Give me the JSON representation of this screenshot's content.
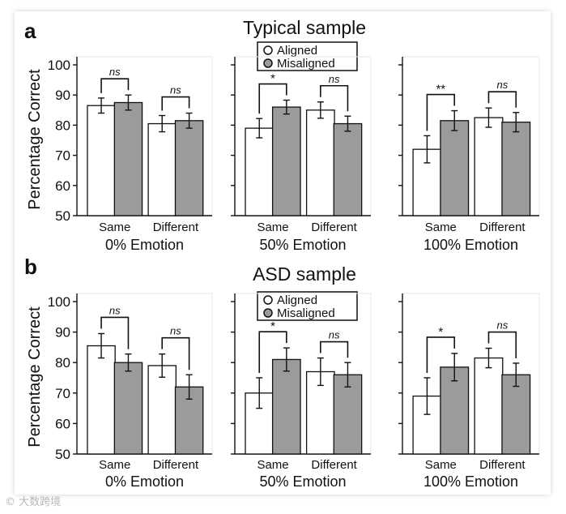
{
  "figure": {
    "y_axis_label": "Percentage Correct",
    "legend": {
      "aligned": "Aligned",
      "misaligned": "Misaligned"
    },
    "colors": {
      "aligned": "#ffffff",
      "misaligned": "#9b9b9b",
      "stroke": "#111111"
    },
    "watermark": "© 大数跨境"
  },
  "chart_data": [
    {
      "panel": "a",
      "title": "Typical sample",
      "type": "bar",
      "ylim": [
        50,
        100
      ],
      "yticks": [
        50,
        60,
        70,
        80,
        90,
        100
      ],
      "subplots": [
        {
          "xlabel": "0% Emotion",
          "categories": [
            "Same",
            "Different"
          ],
          "series": [
            {
              "name": "Aligned",
              "values": [
                86.5,
                80.5
              ]
            },
            {
              "name": "Misaligned",
              "values": [
                87.5,
                81.5
              ]
            }
          ],
          "errors": [
            [
              2.5,
              2.5
            ],
            [
              2.7,
              2.5
            ]
          ],
          "annotations": [
            "ns",
            "ns"
          ]
        },
        {
          "xlabel": "50% Emotion",
          "categories": [
            "Same",
            "Different"
          ],
          "series": [
            {
              "name": "Aligned",
              "values": [
                79,
                85
              ]
            },
            {
              "name": "Misaligned",
              "values": [
                86,
                80.5
              ]
            }
          ],
          "errors": [
            [
              3.2,
              2.3
            ],
            [
              2.7,
              2.5
            ]
          ],
          "annotations": [
            "*",
            "ns"
          ]
        },
        {
          "xlabel": "100% Emotion",
          "categories": [
            "Same",
            "Different"
          ],
          "series": [
            {
              "name": "Aligned",
              "values": [
                72,
                82.5
              ]
            },
            {
              "name": "Misaligned",
              "values": [
                81.5,
                81
              ]
            }
          ],
          "errors": [
            [
              4.5,
              3.3
            ],
            [
              3.2,
              3.2
            ]
          ],
          "annotations": [
            "**",
            "ns"
          ]
        }
      ]
    },
    {
      "panel": "b",
      "title": "ASD sample",
      "type": "bar",
      "ylim": [
        50,
        100
      ],
      "yticks": [
        50,
        60,
        70,
        80,
        90,
        100
      ],
      "subplots": [
        {
          "xlabel": "0% Emotion",
          "categories": [
            "Same",
            "Different"
          ],
          "series": [
            {
              "name": "Aligned",
              "values": [
                85.5,
                79
              ]
            },
            {
              "name": "Misaligned",
              "values": [
                80,
                72
              ]
            }
          ],
          "errors": [
            [
              4,
              2.8
            ],
            [
              3.8,
              4
            ]
          ],
          "annotations": [
            "ns",
            "ns"
          ]
        },
        {
          "xlabel": "50% Emotion",
          "categories": [
            "Same",
            "Different"
          ],
          "series": [
            {
              "name": "Aligned",
              "values": [
                70,
                77
              ]
            },
            {
              "name": "Misaligned",
              "values": [
                81,
                76
              ]
            }
          ],
          "errors": [
            [
              5,
              3.8
            ],
            [
              4.5,
              4
            ]
          ],
          "annotations": [
            "*",
            "ns"
          ]
        },
        {
          "xlabel": "100% Emotion",
          "categories": [
            "Same",
            "Different"
          ],
          "series": [
            {
              "name": "Aligned",
              "values": [
                69,
                81.5
              ]
            },
            {
              "name": "Misaligned",
              "values": [
                78.5,
                76
              ]
            }
          ],
          "errors": [
            [
              6,
              4.5
            ],
            [
              3.2,
              3.8
            ]
          ],
          "annotations": [
            "*",
            "ns"
          ]
        }
      ]
    }
  ]
}
